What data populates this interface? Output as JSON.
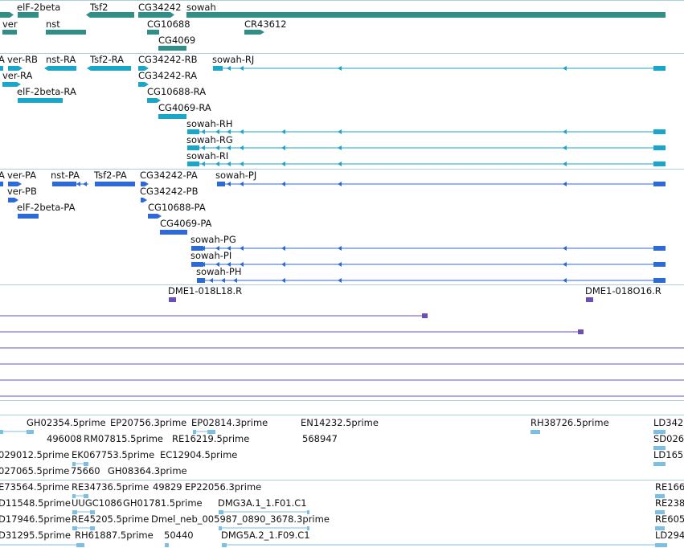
{
  "colors": {
    "gene_dark": "#2f8f87",
    "transcript_cyan": "#1aa6c8",
    "transcript_blue": "#2d6ad6",
    "clone_purple": "#6c4fb3",
    "est_lightblue": "#7dbfe0",
    "separator": "#a9cfd8",
    "text": "#111111"
  },
  "labels": {
    "genes": [
      "elF-2beta",
      "Tsf2",
      "CG34242",
      "sowah",
      "ver",
      "nst",
      "CG10688",
      "CR43612",
      "CG4069"
    ],
    "track_a": [
      "ver-RB",
      "nst-RA",
      "Tsf2-RA",
      "CG34242-RB",
      "sowah-RJ",
      "ver-RA",
      "CG34242-RA",
      "elF-2beta-RA",
      "CG10688-RA",
      "CG4069-RA",
      "sowah-RH",
      "sowah-RG",
      "sowah-RI",
      "A"
    ],
    "track_b": [
      "ver-PA",
      "nst-PA",
      "Tsf2-PA",
      "CG34242-PA",
      "sowah-PJ",
      "ver-PB",
      "CG34242-PB",
      "elF-2beta-PA",
      "CG10688-PA",
      "CG4069-PA",
      "sowah-PG",
      "sowah-PI",
      "sowah-PH",
      "A"
    ],
    "clones": [
      "DME1-018L18.R",
      "DME1-018O16.R"
    ],
    "ests": [
      "GH02354.5prime",
      "EP20756.3prime",
      "EP02814.3prime",
      "EN14232.5prime",
      "RH38726.5prime",
      "LD342",
      "496008",
      "RM07815.5prime",
      "RE16219.5prime",
      "568947",
      "SD026",
      "029012.5prime",
      "EK067753.5prime",
      "EC12904.5prime",
      "LD165",
      "027065.5prime",
      "75660",
      "GH08364.3prime",
      "E73564.5prime",
      "RE34736.5prime",
      "49829",
      "EP22056.3prime",
      "RE166",
      "D11548.5prime",
      "UUGC1086",
      "GH01781.5prime",
      "DMG3A.1_1.F01.C1",
      "RE238",
      "D17946.5prime",
      "RE45205.5prime",
      "Dmel_neb_005987_0890_3678.3prime",
      "RE605",
      "D31295.5prime",
      "RH61887.5prime",
      "50440",
      "DMG5A.2_1.F09.C1",
      "LD294"
    ]
  }
}
